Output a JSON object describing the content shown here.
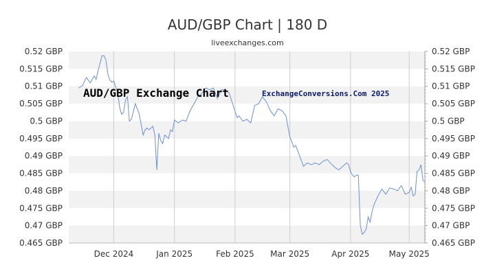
{
  "chart_data": {
    "type": "line",
    "title": "AUD/GBP Chart | 180 D",
    "subtitle": "liveexchanges.com",
    "xlabel": "",
    "ylabel": "",
    "x_range": [
      "2024-11-08",
      "2025-05-09"
    ],
    "ylim": [
      0.465,
      0.52
    ],
    "y_ticks": [
      0.52,
      0.515,
      0.51,
      0.505,
      0.5,
      0.495,
      0.49,
      0.485,
      0.48,
      0.475,
      0.47,
      0.465
    ],
    "y_tick_labels": [
      "0.52 GBP",
      "0.515 GBP",
      "0.51 GBP",
      "0.505 GBP",
      "0.5 GBP",
      "0.495 GBP",
      "0.49 GBP",
      "0.485 GBP",
      "0.48 GBP",
      "0.475 GBP",
      "0.47 GBP",
      "0.465 GBP"
    ],
    "x_ticks": [
      "2024-12-01",
      "2025-01-01",
      "2025-02-01",
      "2025-03-01",
      "2025-04-01",
      "2025-05-01"
    ],
    "x_tick_labels": [
      "Dec 2024",
      "Jan 2025",
      "Feb 2025",
      "Mar 2025",
      "Apr 2025",
      "May 2025"
    ],
    "grid": "alternating horizontal bands, vertical lines at month starts",
    "line_color": "#6a8fd4",
    "series": [
      {
        "x": [
          "2024-11-13",
          "2024-11-15",
          "2024-11-17",
          "2024-11-19",
          "2024-11-21",
          "2024-11-22",
          "2024-11-23",
          "2024-11-25",
          "2024-11-26",
          "2024-11-27",
          "2024-11-28",
          "2024-11-29",
          "2024-11-30",
          "2024-12-01",
          "2024-12-03",
          "2024-12-04",
          "2024-12-05",
          "2024-12-06",
          "2024-12-07",
          "2024-12-08",
          "2024-12-09",
          "2024-12-10",
          "2024-12-12",
          "2024-12-14",
          "2024-12-16",
          "2024-12-17",
          "2024-12-18",
          "2024-12-19",
          "2024-12-21",
          "2024-12-22",
          "2024-12-23",
          "2024-12-24",
          "2024-12-25",
          "2024-12-26",
          "2024-12-27",
          "2024-12-28",
          "2024-12-29",
          "2024-12-30",
          "2024-12-31",
          "2025-01-01",
          "2025-01-03",
          "2025-01-05",
          "2025-01-07",
          "2025-01-09",
          "2025-01-11",
          "2025-01-13",
          "2025-01-15",
          "2025-01-17",
          "2025-01-19",
          "2025-01-21",
          "2025-01-23",
          "2025-01-25",
          "2025-01-27",
          "2025-01-29",
          "2025-01-31",
          "2025-02-02",
          "2025-02-03",
          "2025-02-05",
          "2025-02-07",
          "2025-02-09",
          "2025-02-11",
          "2025-02-13",
          "2025-02-15",
          "2025-02-17",
          "2025-02-19",
          "2025-02-21",
          "2025-02-23",
          "2025-02-25",
          "2025-02-27",
          "2025-03-01",
          "2025-03-03",
          "2025-03-04",
          "2025-03-06",
          "2025-03-08",
          "2025-03-10",
          "2025-03-12",
          "2025-03-14",
          "2025-03-16",
          "2025-03-18",
          "2025-03-20",
          "2025-03-22",
          "2025-03-24",
          "2025-03-26",
          "2025-03-28",
          "2025-03-30",
          "2025-03-31",
          "2025-04-01",
          "2025-04-02",
          "2025-04-03",
          "2025-04-04",
          "2025-04-05",
          "2025-04-06",
          "2025-04-07",
          "2025-04-08",
          "2025-04-09",
          "2025-04-10",
          "2025-04-11",
          "2025-04-12",
          "2025-04-13",
          "2025-04-15",
          "2025-04-17",
          "2025-04-19",
          "2025-04-21",
          "2025-04-23",
          "2025-04-25",
          "2025-04-27",
          "2025-04-29",
          "2025-05-01",
          "2025-05-02",
          "2025-05-03",
          "2025-05-04",
          "2025-05-05",
          "2025-05-06",
          "2025-05-07",
          "2025-05-08",
          "2025-05-09"
        ],
        "y": [
          0.5095,
          0.5102,
          0.5125,
          0.511,
          0.513,
          0.512,
          0.5145,
          0.5188,
          0.5188,
          0.5175,
          0.5135,
          0.5118,
          0.5112,
          0.5115,
          0.508,
          0.504,
          0.502,
          0.5025,
          0.506,
          0.507,
          0.5,
          0.5005,
          0.505,
          0.502,
          0.496,
          0.4975,
          0.498,
          0.4975,
          0.4985,
          0.496,
          0.486,
          0.4965,
          0.4945,
          0.4935,
          0.496,
          0.4955,
          0.495,
          0.4975,
          0.497,
          0.5003,
          0.4995,
          0.5003,
          0.5,
          0.503,
          0.505,
          0.507,
          0.508,
          0.5095,
          0.509,
          0.5095,
          0.5065,
          0.509,
          0.509,
          0.508,
          0.5045,
          0.501,
          0.5015,
          0.5,
          0.5005,
          0.4995,
          0.5045,
          0.505,
          0.507,
          0.5055,
          0.503,
          0.5015,
          0.5035,
          0.503,
          0.5015,
          0.4955,
          0.4925,
          0.493,
          0.49,
          0.487,
          0.488,
          0.4875,
          0.488,
          0.4875,
          0.4885,
          0.489,
          0.4878,
          0.4867,
          0.486,
          0.487,
          0.488,
          0.4875,
          0.4855,
          0.4845,
          0.484,
          0.4845,
          0.4845,
          0.47,
          0.4675,
          0.468,
          0.469,
          0.4725,
          0.471,
          0.474,
          0.476,
          0.4785,
          0.4805,
          0.479,
          0.4808,
          0.4805,
          0.48,
          0.4815,
          0.479,
          0.4795,
          0.481,
          0.4785,
          0.479,
          0.4855,
          0.486,
          0.4875,
          0.483,
          0.4825
        ]
      }
    ],
    "annotations": [
      "AUD/GBP Exchange Chart",
      "ExchangeConversions.Com 2025"
    ]
  }
}
